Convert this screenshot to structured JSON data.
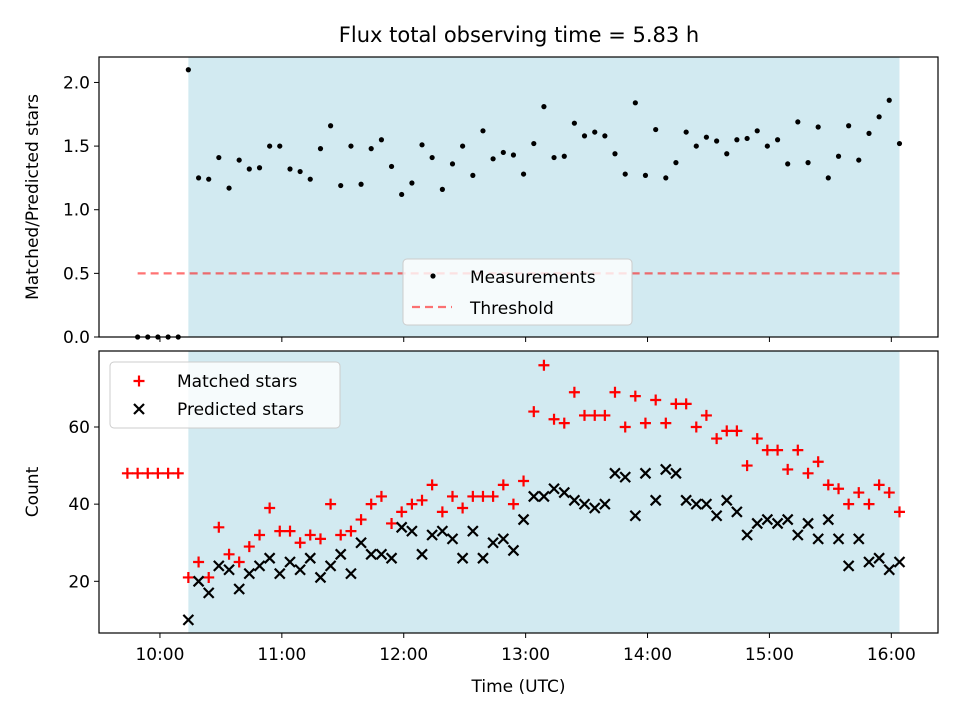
{
  "title": "Flux total observing time = 5.83 h",
  "colors": {
    "shade": "#add8e6",
    "measurement": "#000000",
    "threshold": "#ff0000",
    "matched": "#ff0000",
    "predicted": "#000000"
  },
  "chart_data": [
    {
      "type": "scatter",
      "ylabel": "Matched/Predicted stars",
      "ylim": [
        0,
        2.2
      ],
      "yticks": [
        0.0,
        0.5,
        1.0,
        1.5,
        2.0
      ],
      "ytick_labels": [
        "0.0",
        "0.5",
        "1.0",
        "1.5",
        "2.0"
      ],
      "xlim_hours": [
        9.5,
        16.383
      ],
      "observing_window_hours": [
        10.233,
        16.067
      ],
      "legend_position": "lower center",
      "series": [
        {
          "name": "Measurements",
          "marker": "dot",
          "x_hours": [
            9.817,
            9.9,
            9.983,
            10.067,
            10.15,
            10.317,
            10.4,
            10.483,
            10.567,
            10.65,
            10.733,
            10.817,
            10.9,
            10.983,
            11.067,
            11.15,
            11.233,
            11.317,
            11.4,
            11.483,
            11.567,
            11.65,
            11.733,
            11.817,
            11.9,
            11.983,
            12.067,
            12.15,
            12.233,
            12.317,
            12.4,
            12.483,
            12.567,
            12.65,
            12.733,
            12.817,
            12.9,
            12.983,
            13.067,
            13.15,
            13.233,
            13.317,
            13.4,
            13.483,
            13.567,
            13.65,
            13.733,
            13.817,
            13.9,
            13.983,
            14.067,
            14.15,
            14.233,
            14.317,
            14.4,
            14.483,
            14.567,
            14.65,
            14.733,
            14.817,
            14.9,
            14.983,
            15.067,
            15.15,
            15.233,
            15.317,
            15.4,
            15.483,
            15.567,
            15.65,
            15.733,
            15.817,
            15.9,
            15.983,
            16.067
          ],
          "y": [
            0,
            0,
            0,
            0,
            0,
            1.25,
            1.24,
            1.41,
            1.17,
            1.39,
            1.32,
            1.33,
            1.5,
            1.5,
            1.32,
            1.3,
            1.24,
            1.48,
            1.66,
            1.19,
            1.5,
            1.2,
            1.48,
            1.55,
            1.34,
            1.12,
            1.21,
            1.51,
            1.41,
            1.16,
            1.36,
            1.5,
            1.27,
            1.62,
            1.4,
            1.45,
            1.43,
            1.28,
            1.52,
            1.81,
            1.41,
            1.42,
            1.68,
            1.58,
            1.61,
            1.58,
            1.44,
            1.28,
            1.84,
            1.27,
            1.63,
            1.25,
            1.37,
            1.61,
            1.5,
            1.57,
            1.54,
            1.44,
            1.55,
            1.56,
            1.62,
            1.5,
            1.55,
            1.36,
            1.69,
            1.37,
            1.65,
            1.25,
            1.42,
            1.66,
            1.39,
            1.6,
            1.73,
            1.86,
            1.52
          ]
        },
        {
          "name": "Measurements",
          "marker": "dot",
          "x_hours": [
            10.233
          ],
          "y": [
            2.1
          ]
        },
        {
          "name": "Threshold",
          "marker": "dashed-line",
          "x_hours": [
            9.817,
            16.067
          ],
          "y": [
            0.5,
            0.5
          ]
        }
      ]
    },
    {
      "type": "scatter",
      "xlabel": "Time (UTC)",
      "ylabel": "Count",
      "ylim": [
        6.6,
        79.7
      ],
      "yticks": [
        20,
        40,
        60
      ],
      "ytick_labels": [
        "20",
        "40",
        "60"
      ],
      "xlim_hours": [
        9.5,
        16.383
      ],
      "xticks_hours": [
        10,
        11,
        12,
        13,
        14,
        15,
        16
      ],
      "xtick_labels": [
        "10:00",
        "11:00",
        "12:00",
        "13:00",
        "14:00",
        "15:00",
        "16:00"
      ],
      "observing_window_hours": [
        10.233,
        16.067
      ],
      "legend_position": "upper left",
      "series": [
        {
          "name": "Matched stars",
          "marker": "plus",
          "x_hours": [
            9.733,
            9.817,
            9.9,
            9.983,
            10.067,
            10.15,
            10.233,
            10.317,
            10.4,
            10.483,
            10.567,
            10.65,
            10.733,
            10.817,
            10.9,
            10.983,
            11.067,
            11.15,
            11.233,
            11.317,
            11.4,
            11.483,
            11.567,
            11.65,
            11.733,
            11.817,
            11.9,
            11.983,
            12.067,
            12.15,
            12.233,
            12.317,
            12.4,
            12.483,
            12.567,
            12.65,
            12.733,
            12.817,
            12.9,
            12.983,
            13.067,
            13.15,
            13.233,
            13.317,
            13.4,
            13.483,
            13.567,
            13.65,
            13.733,
            13.817,
            13.9,
            13.983,
            14.067,
            14.15,
            14.233,
            14.317,
            14.4,
            14.483,
            14.567,
            14.65,
            14.733,
            14.817,
            14.9,
            14.983,
            15.067,
            15.15,
            15.233,
            15.317,
            15.4,
            15.483,
            15.567,
            15.65,
            15.733,
            15.817,
            15.9,
            15.983,
            16.067
          ],
          "y": [
            48,
            48,
            48,
            48,
            48,
            48,
            21,
            25,
            21,
            34,
            27,
            25,
            29,
            32,
            39,
            33,
            33,
            30,
            32,
            31,
            40,
            32,
            33,
            36,
            40,
            42,
            35,
            38,
            40,
            41,
            45,
            38,
            42,
            39,
            42,
            42,
            42,
            45,
            40,
            46,
            64,
            76,
            62,
            61,
            69,
            63,
            63,
            63,
            69,
            60,
            68,
            61,
            67,
            61,
            66,
            66,
            60,
            63,
            57,
            59,
            59,
            50,
            57,
            54,
            54,
            49,
            54,
            48,
            51,
            45,
            44,
            40,
            43,
            40,
            45,
            43,
            38
          ]
        },
        {
          "name": "Predicted stars",
          "marker": "x",
          "x_hours": [
            10.233,
            10.317,
            10.4,
            10.483,
            10.567,
            10.65,
            10.733,
            10.817,
            10.9,
            10.983,
            11.067,
            11.15,
            11.233,
            11.317,
            11.4,
            11.483,
            11.567,
            11.65,
            11.733,
            11.817,
            11.9,
            11.983,
            12.067,
            12.15,
            12.233,
            12.317,
            12.4,
            12.483,
            12.567,
            12.65,
            12.733,
            12.817,
            12.9,
            12.983,
            13.067,
            13.15,
            13.233,
            13.317,
            13.4,
            13.483,
            13.567,
            13.65,
            13.733,
            13.817,
            13.9,
            13.983,
            14.067,
            14.15,
            14.233,
            14.317,
            14.4,
            14.483,
            14.567,
            14.65,
            14.733,
            14.817,
            14.9,
            14.983,
            15.067,
            15.15,
            15.233,
            15.317,
            15.4,
            15.483,
            15.567,
            15.65,
            15.733,
            15.817,
            15.9,
            15.983,
            16.067
          ],
          "y": [
            10,
            20,
            17,
            24,
            23,
            18,
            22,
            24,
            26,
            22,
            25,
            23,
            26,
            21,
            24,
            27,
            22,
            30,
            27,
            27,
            26,
            34,
            33,
            27,
            32,
            33,
            31,
            26,
            33,
            26,
            30,
            31,
            28,
            36,
            42,
            42,
            44,
            43,
            41,
            40,
            39,
            40,
            48,
            47,
            37,
            48,
            41,
            49,
            48,
            41,
            40,
            40,
            37,
            41,
            38,
            32,
            35,
            36,
            35,
            36,
            32,
            35,
            31,
            36,
            31,
            24,
            31,
            25,
            26,
            23,
            25
          ]
        }
      ]
    }
  ]
}
